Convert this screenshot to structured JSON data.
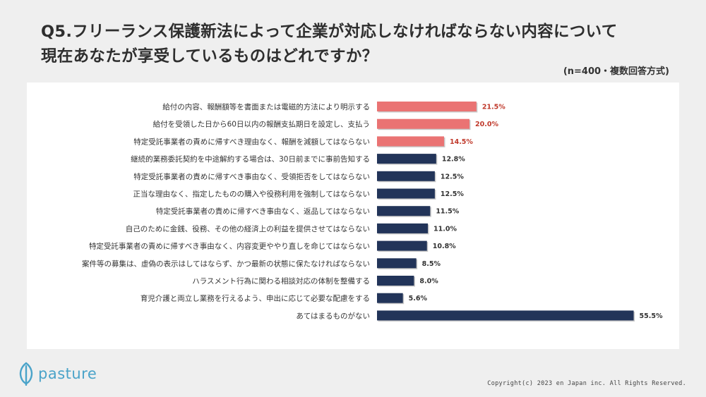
{
  "title": {
    "line1": "Q5.フリーランス保護新法によって企業が対応しなければならない内容について",
    "line2": "現在あなたが享受しているものはどれですか？"
  },
  "note": "(n=400・複数回答方式)",
  "footer": {
    "brand": "pasture",
    "copyright": "Copyright(c) 2023 en Japan inc. All Rights Reserved."
  },
  "colors": {
    "highlight": "#ea7373",
    "bar": "#223459",
    "highlight_label": "#c0392b",
    "label": "#333333"
  },
  "chart_data": {
    "type": "bar",
    "orientation": "horizontal",
    "xlim": [
      0,
      60
    ],
    "grid": false,
    "categories": [
      "給付の内容、報酬額等を書面または電磁的方法により明示する",
      "給付を受領した日から60日以内の報酬支払期日を設定し、支払う",
      "特定受託事業者の責めに帰すべき理由なく、報酬を減額してはならない",
      "継続的業務委託契約を中途解約する場合は、30日前までに事前告知する",
      "特定受託事業者の責めに帰すべき事由なく、受領拒否をしてはならない",
      "正当な理由なく、指定したものの購入や役務利用を強制してはならない",
      "特定受託事業者の責めに帰すべき事由なく、返品してはならない",
      "自己のために金銭、役務、その他の経済上の利益を提供させてはならない",
      "特定受託事業者の責めに帰すべき事由なく、内容変更ややり直しを命じてはならない",
      "案件等の募集は、虚偽の表示はしてはならず、かつ最新の状態に保たなければならない",
      "ハラスメント行為に関わる相談対応の体制を整備する",
      "育児介護と両立し業務を行えるよう、申出に応じて必要な配慮をする",
      "あてはまるものがない"
    ],
    "values": [
      21.5,
      20.0,
      14.5,
      12.8,
      12.5,
      12.5,
      11.5,
      11.0,
      10.8,
      8.5,
      8.0,
      5.6,
      55.5
    ],
    "value_labels": [
      "21.5%",
      "20.0%",
      "14.5%",
      "12.8%",
      "12.5%",
      "12.5%",
      "11.5%",
      "11.0%",
      "10.8%",
      "8.5%",
      "8.0%",
      "5.6%",
      "55.5%"
    ],
    "highlighted": [
      true,
      true,
      true,
      false,
      false,
      false,
      false,
      false,
      false,
      false,
      false,
      false,
      false
    ]
  }
}
